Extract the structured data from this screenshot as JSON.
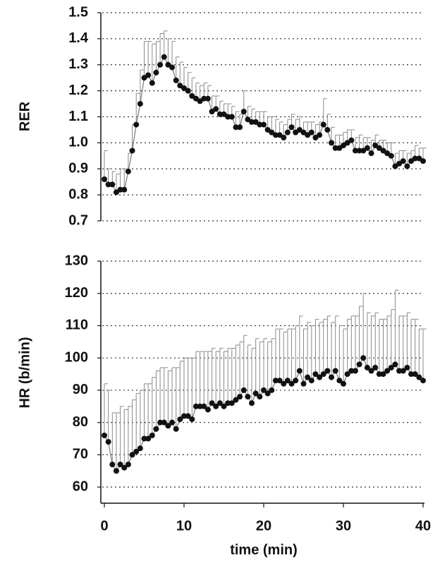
{
  "chart_data": [
    {
      "type": "line",
      "ylabel": "RER",
      "x": [
        0,
        0.5,
        1,
        1.5,
        2,
        2.5,
        3,
        3.5,
        4,
        4.5,
        5,
        5.5,
        6,
        6.5,
        7,
        7.5,
        8,
        8.5,
        9,
        9.5,
        10,
        10.5,
        11,
        11.5,
        12,
        12.5,
        13,
        13.5,
        14,
        14.5,
        15,
        15.5,
        16,
        16.5,
        17,
        17.5,
        18,
        18.5,
        19,
        19.5,
        20,
        20.5,
        21,
        21.5,
        22,
        22.5,
        23,
        23.5,
        24,
        24.5,
        25,
        25.5,
        26,
        26.5,
        27,
        27.5,
        28,
        28.5,
        29,
        29.5,
        30,
        30.5,
        31,
        31.5,
        32,
        32.5,
        33,
        33.5,
        34,
        34.5,
        35,
        35.5,
        36,
        36.5,
        37,
        37.5,
        38,
        38.5,
        39,
        39.5,
        40
      ],
      "values": [
        0.86,
        0.84,
        0.84,
        0.81,
        0.82,
        0.82,
        0.89,
        0.97,
        1.07,
        1.15,
        1.25,
        1.26,
        1.23,
        1.27,
        1.3,
        1.33,
        1.3,
        1.29,
        1.24,
        1.22,
        1.21,
        1.2,
        1.18,
        1.17,
        1.16,
        1.17,
        1.17,
        1.12,
        1.13,
        1.11,
        1.11,
        1.1,
        1.1,
        1.06,
        1.06,
        1.12,
        1.09,
        1.08,
        1.08,
        1.07,
        1.07,
        1.05,
        1.04,
        1.03,
        1.03,
        1.02,
        1.04,
        1.06,
        1.04,
        1.05,
        1.04,
        1.03,
        1.04,
        1.02,
        1.03,
        1.07,
        1.05,
        1.0,
        0.98,
        0.98,
        0.99,
        1.0,
        1.01,
        0.97,
        0.97,
        0.97,
        0.98,
        0.96,
        0.99,
        0.98,
        0.97,
        0.96,
        0.95,
        0.91,
        0.92,
        0.93,
        0.91,
        0.93,
        0.94,
        0.94,
        0.93
      ],
      "errors": [
        0.11,
        0.06,
        0.05,
        0.07,
        0.08,
        0.08,
        0.07,
        0.1,
        0.12,
        0.13,
        0.14,
        0.13,
        0.15,
        0.12,
        0.12,
        0.1,
        0.1,
        0.1,
        0.09,
        0.09,
        0.08,
        0.07,
        0.07,
        0.06,
        0.06,
        0.06,
        0.05,
        0.06,
        0.05,
        0.05,
        0.04,
        0.05,
        0.04,
        0.06,
        0.05,
        0.08,
        0.05,
        0.05,
        0.04,
        0.05,
        0.05,
        0.05,
        0.06,
        0.06,
        0.05,
        0.05,
        0.05,
        0.05,
        0.05,
        0.05,
        0.04,
        0.05,
        0.04,
        0.05,
        0.05,
        0.1,
        0.06,
        0.06,
        0.05,
        0.05,
        0.05,
        0.05,
        0.04,
        0.05,
        0.06,
        0.05,
        0.04,
        0.05,
        0.04,
        0.03,
        0.04,
        0.04,
        0.05,
        0.05,
        0.05,
        0.04,
        0.05,
        0.04,
        0.05,
        0.04,
        0.05
      ],
      "color": "#111111",
      "line_color": "#777777",
      "grid": true,
      "xlim": [
        0,
        40
      ],
      "ylim": [
        0.7,
        1.5
      ],
      "yticks": [
        {
          "value": 0.7,
          "label": "0.7"
        },
        {
          "value": 0.8,
          "label": "0.8"
        },
        {
          "value": 0.9,
          "label": "0.9"
        },
        {
          "value": 1.0,
          "label": "1.0"
        },
        {
          "value": 1.1,
          "label": "1.1"
        },
        {
          "value": 1.2,
          "label": "1.2"
        },
        {
          "value": 1.3,
          "label": "1.3"
        },
        {
          "value": 1.4,
          "label": "1.4"
        },
        {
          "value": 1.5,
          "label": "1.5"
        }
      ]
    },
    {
      "type": "line",
      "ylabel": "HR (b/min)",
      "xlabel": "time (min)",
      "x": [
        0,
        0.5,
        1,
        1.5,
        2,
        2.5,
        3,
        3.5,
        4,
        4.5,
        5,
        5.5,
        6,
        6.5,
        7,
        7.5,
        8,
        8.5,
        9,
        9.5,
        10,
        10.5,
        11,
        11.5,
        12,
        12.5,
        13,
        13.5,
        14,
        14.5,
        15,
        15.5,
        16,
        16.5,
        17,
        17.5,
        18,
        18.5,
        19,
        19.5,
        20,
        20.5,
        21,
        21.5,
        22,
        22.5,
        23,
        23.5,
        24,
        24.5,
        25,
        25.5,
        26,
        26.5,
        27,
        27.5,
        28,
        28.5,
        29,
        29.5,
        30,
        30.5,
        31,
        31.5,
        32,
        32.5,
        33,
        33.5,
        34,
        34.5,
        35,
        35.5,
        36,
        36.5,
        37,
        37.5,
        38,
        38.5,
        39,
        39.5,
        40
      ],
      "values": [
        76,
        74,
        67,
        65,
        67,
        66,
        67,
        70,
        71,
        72,
        75,
        75,
        76,
        78,
        80,
        80,
        79,
        80,
        78,
        81,
        82,
        82,
        81,
        85,
        85,
        85,
        84,
        86,
        85,
        86,
        85,
        86,
        86,
        87,
        88,
        90,
        88,
        86,
        89,
        88,
        90,
        89,
        90,
        93,
        93,
        92,
        93,
        92,
        93,
        96,
        92,
        94,
        93,
        95,
        94,
        95,
        96,
        94,
        96,
        93,
        92,
        95,
        96,
        96,
        98,
        100,
        97,
        96,
        97,
        95,
        95,
        96,
        97,
        98,
        96,
        96,
        97,
        95,
        95,
        94,
        93
      ],
      "errors": [
        16,
        16,
        16,
        18,
        18,
        18,
        18,
        17,
        18,
        18,
        17,
        17,
        18,
        18,
        17,
        17,
        17,
        17,
        19,
        18,
        18,
        18,
        19,
        17,
        17,
        17,
        18,
        17,
        17,
        17,
        17,
        17,
        17,
        17,
        17,
        17,
        16,
        17,
        17,
        17,
        16,
        16,
        16,
        16,
        16,
        16,
        16,
        17,
        17,
        17,
        17,
        17,
        17,
        17,
        17,
        17,
        17,
        17,
        17,
        17,
        17,
        17,
        17,
        17,
        18,
        20,
        17,
        17,
        17,
        17,
        17,
        17,
        18,
        23,
        17,
        17,
        17,
        17,
        17,
        15,
        16
      ],
      "color": "#111111",
      "line_color": "#777777",
      "grid": true,
      "xlim": [
        0,
        40
      ],
      "ylim": [
        55,
        130
      ],
      "xticks": [
        0,
        10,
        20,
        30,
        40
      ],
      "yticks": [
        60,
        70,
        80,
        90,
        100,
        110,
        120,
        130
      ]
    }
  ]
}
